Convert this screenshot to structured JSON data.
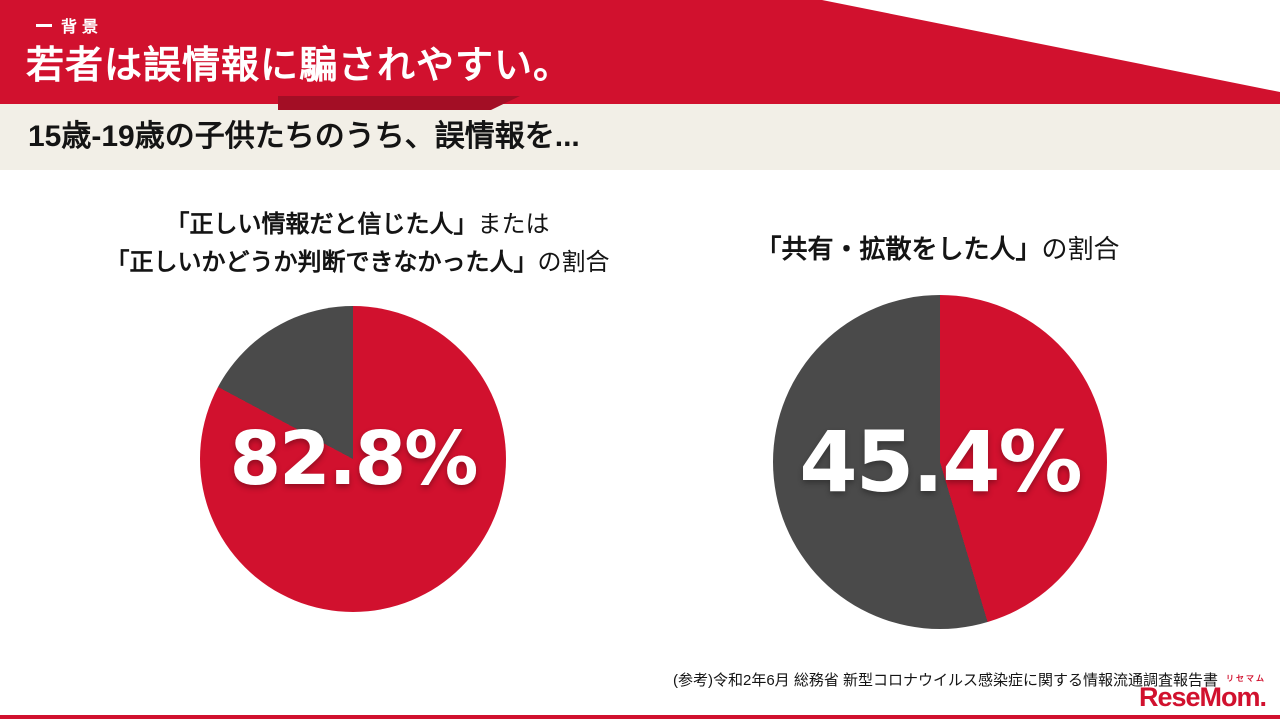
{
  "colors": {
    "red": "#d1112e",
    "gray": "#4a4a4a",
    "cream": "#f2efe7",
    "fold": "#a30e25"
  },
  "header": {
    "tag": "背景",
    "title": "若者は誤情報に騙されやすい。",
    "subtitle": "15歳-19歳の子供たちのうち、誤情報を..."
  },
  "charts": {
    "left": {
      "caption_line1_bold": "「正しい情報だと信じた人」",
      "caption_line1_regular": "または",
      "caption_line2_bold": "「正しいかどうか判断できなかった人」",
      "caption_line2_regular": "の割合",
      "value_label": "82.8%"
    },
    "right": {
      "caption_bold": "「共有・拡散をした人」",
      "caption_regular": "の割合",
      "value_label": "45.4%"
    }
  },
  "chart_data": [
    {
      "type": "pie",
      "title": "「正しい情報だと信じた人」または「正しいかどうか判断できなかった人」の割合",
      "values": [
        82.8,
        17.2
      ],
      "colors": [
        "#d1112e",
        "#4a4a4a"
      ],
      "center_label": "82.8%",
      "start_deg": 0,
      "legend": "none"
    },
    {
      "type": "pie",
      "title": "「共有・拡散をした人」の割合",
      "values": [
        45.4,
        54.6
      ],
      "colors": [
        "#d1112e",
        "#4a4a4a"
      ],
      "center_label": "45.4%",
      "start_deg": 0,
      "legend": "none"
    }
  ],
  "footer": {
    "source": "(参考)令和2年6月 総務省 新型コロナウイルス感染症に関する情報流通調査報告書",
    "logo_small": "リセマム",
    "logo_text": "ReseMom."
  }
}
